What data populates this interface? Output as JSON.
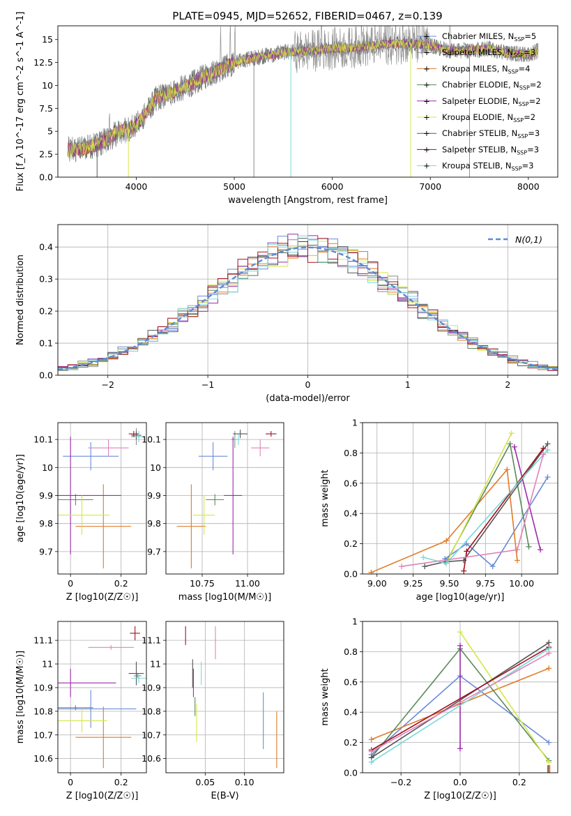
{
  "title": "PLATE=0945, MJD=52652, FIBERID=0467, z=0.139",
  "models": [
    {
      "name": "Chabrier MILES",
      "n": "5",
      "color": "#6a8ad8"
    },
    {
      "name": "Salpeter MILES",
      "n": "3",
      "color": "#8a8a8a"
    },
    {
      "name": "Kroupa MILES",
      "n": "4",
      "color": "#e07b27"
    },
    {
      "name": "Chabrier ELODIE",
      "n": "2",
      "color": "#5a8a5a"
    },
    {
      "name": "Salpeter ELODIE",
      "n": "2",
      "color": "#9a2aa8"
    },
    {
      "name": "Kroupa ELODIE",
      "n": "2",
      "color": "#d6e64a"
    },
    {
      "name": "Chabrier STELIB",
      "n": "3",
      "color": "#555555"
    },
    {
      "name": "Salpeter STELIB",
      "n": "3",
      "color": "#a01020"
    },
    {
      "name": "Kroupa STELIB",
      "n": "3",
      "color": "#78d8d8"
    }
  ],
  "extra_colors": {
    "pink": "#e082b8",
    "gauss": "#5b8ad6"
  },
  "chart_data": [
    {
      "id": "spectrum",
      "type": "line",
      "xlabel": "wavelength [Angstrom, rest frame]",
      "ylabel": "Flux [f_λ 10^-17 erg cm^-2 s^-1 A^-1]",
      "xlim": [
        3200,
        8300
      ],
      "ylim": [
        0,
        16.5
      ],
      "xticks": [
        4000,
        5000,
        6000,
        7000,
        8000
      ],
      "yticks": [
        0.0,
        2.5,
        5.0,
        7.5,
        10.0,
        12.5,
        15.0
      ],
      "grid": false,
      "legend": "top-right",
      "continuum": [
        [
          3300,
          3.0
        ],
        [
          3450,
          3.1
        ],
        [
          3600,
          3.6
        ],
        [
          3700,
          4.0
        ],
        [
          3800,
          4.8
        ],
        [
          3900,
          5.2
        ],
        [
          4000,
          5.6
        ],
        [
          4100,
          7.0
        ],
        [
          4200,
          8.5
        ],
        [
          4300,
          9.0
        ],
        [
          4500,
          9.8
        ],
        [
          4700,
          11.0
        ],
        [
          4900,
          12.0
        ],
        [
          5100,
          12.8
        ],
        [
          5300,
          13.2
        ],
        [
          5500,
          13.6
        ],
        [
          5800,
          13.8
        ],
        [
          6000,
          14.0
        ],
        [
          6300,
          14.2
        ],
        [
          6500,
          14.5
        ],
        [
          6800,
          14.6
        ],
        [
          7000,
          14.3
        ],
        [
          7200,
          13.8
        ],
        [
          7400,
          13.8
        ],
        [
          7600,
          14.0
        ],
        [
          7800,
          13.5
        ],
        [
          8000,
          13.4
        ],
        [
          8100,
          13.8
        ]
      ],
      "emission_lines": [
        3727,
        4861,
        4959,
        5007,
        5890,
        6300,
        6563,
        6583,
        6717,
        7200
      ],
      "deep_drops": [
        3600,
        3920,
        5200,
        5577,
        6800,
        7400
      ]
    },
    {
      "id": "residuals",
      "type": "histogram",
      "xlabel": "(data-model)/error",
      "ylabel": "Normed distribution",
      "xlim": [
        -2.5,
        2.5
      ],
      "ylim": [
        0,
        0.47
      ],
      "xticks": [
        -2,
        -1,
        0,
        1,
        2
      ],
      "yticks": [
        0.0,
        0.1,
        0.2,
        0.3,
        0.4
      ],
      "bin_width": 0.1,
      "grid": true,
      "gauss_label": "N(0,1)",
      "legend": "top-right"
    },
    {
      "id": "age_vs_Z",
      "type": "scatter",
      "xlabel": "Z [log10(Z/Z☉)]",
      "ylabel": "age  [log10(age/yr)]",
      "xlim": [
        -0.05,
        0.3
      ],
      "ylim": [
        9.62,
        10.16
      ],
      "xticks": [
        0.0,
        0.2
      ],
      "yticks": [
        9.7,
        9.8,
        9.9,
        10.0,
        10.1
      ],
      "points": [
        {
          "model": 0,
          "x": 0.08,
          "y": 10.04,
          "ex": 0.11,
          "ey": 0.05
        },
        {
          "model": 1,
          "x": 0.26,
          "y": 10.11,
          "ex": 0.02,
          "ey": 0.03
        },
        {
          "model": 2,
          "x": 0.13,
          "y": 9.79,
          "ex": 0.11,
          "ey": 0.15
        },
        {
          "model": 3,
          "x": 0.02,
          "y": 9.885,
          "ex": 0.07,
          "ey": 0.02
        },
        {
          "model": 4,
          "x": 0.0,
          "y": 9.9,
          "ex": 0.2,
          "ey": 0.21
        },
        {
          "model": 5,
          "x": 0.045,
          "y": 9.83,
          "ex": 0.11,
          "ey": 0.07
        },
        {
          "model": 6,
          "x": 0.26,
          "y": 10.115,
          "ex": 0.02,
          "ey": 0.015
        },
        {
          "model": 7,
          "x": 0.25,
          "y": 10.12,
          "ex": 0.02,
          "ey": 0.01
        },
        {
          "model": 8,
          "x": 0.27,
          "y": 10.11,
          "ex": 0.015,
          "ey": 0.02
        },
        {
          "color": "pink",
          "x": 0.15,
          "y": 10.07,
          "ex": 0.08,
          "ey": 0.03
        }
      ]
    },
    {
      "id": "age_vs_mass",
      "type": "scatter",
      "xlabel": "mass [log10(M/M☉)]",
      "ylabel": "",
      "xlim": [
        10.55,
        11.2
      ],
      "ylim": [
        9.62,
        10.16
      ],
      "xticks": [
        10.75,
        11.0
      ],
      "xticklabels": [
        "10.75",
        "11.00"
      ],
      "yticks": [
        9.7,
        9.8,
        9.9,
        10.0,
        10.1
      ],
      "points": [
        {
          "model": 0,
          "x": 10.81,
          "y": 10.04,
          "ex": 0.08,
          "ey": 0.05
        },
        {
          "model": 1,
          "x": 10.93,
          "y": 10.1,
          "ex": 0.02,
          "ey": 0.03
        },
        {
          "model": 2,
          "x": 10.69,
          "y": 9.79,
          "ex": 0.08,
          "ey": 0.15
        },
        {
          "model": 3,
          "x": 10.82,
          "y": 9.885,
          "ex": 0.05,
          "ey": 0.02
        },
        {
          "model": 4,
          "x": 10.92,
          "y": 9.9,
          "ex": 0.05,
          "ey": 0.21
        },
        {
          "model": 5,
          "x": 10.76,
          "y": 9.83,
          "ex": 0.06,
          "ey": 0.07
        },
        {
          "model": 6,
          "x": 10.96,
          "y": 10.12,
          "ex": 0.04,
          "ey": 0.015
        },
        {
          "model": 7,
          "x": 11.13,
          "y": 10.12,
          "ex": 0.03,
          "ey": 0.01
        },
        {
          "model": 8,
          "x": 10.95,
          "y": 10.1,
          "ex": 0.02,
          "ey": 0.02
        },
        {
          "color": "pink",
          "x": 11.07,
          "y": 10.07,
          "ex": 0.05,
          "ey": 0.03
        }
      ]
    },
    {
      "id": "weight_vs_age",
      "type": "line",
      "xlabel": "age  [log10(age/yr)]",
      "ylabel": "mass weight",
      "xlim": [
        8.9,
        10.25
      ],
      "ylim": [
        0,
        1.0
      ],
      "xticks": [
        9.0,
        9.25,
        9.5,
        9.75,
        10.0
      ],
      "xticklabels": [
        "9.00",
        "9.25",
        "9.50",
        "9.75",
        "10.00"
      ],
      "yticks": [
        0.0,
        0.2,
        0.4,
        0.6,
        0.8,
        1.0
      ],
      "grid": true,
      "series": [
        {
          "model": 0,
          "x": [
            9.47,
            9.62,
            9.8,
            10.18
          ],
          "y": [
            0.1,
            0.2,
            0.05,
            0.64
          ]
        },
        {
          "model": 2,
          "x": [
            8.96,
            9.48,
            9.9,
            9.97
          ],
          "y": [
            0.01,
            0.22,
            0.69,
            0.09
          ]
        },
        {
          "model": 3,
          "x": [
            9.48,
            9.92,
            10.05
          ],
          "y": [
            0.08,
            0.86,
            0.18
          ]
        },
        {
          "model": 4,
          "x": [
            9.95,
            10.13
          ],
          "y": [
            0.84,
            0.16
          ]
        },
        {
          "model": 5,
          "x": [
            9.48,
            9.93
          ],
          "y": [
            0.07,
            0.93
          ]
        },
        {
          "model": 6,
          "x": [
            9.33,
            9.47,
            9.6,
            10.18
          ],
          "y": [
            0.05,
            0.08,
            0.09,
            0.86
          ]
        },
        {
          "model": 7,
          "x": [
            9.6,
            9.62,
            10.15
          ],
          "y": [
            0.02,
            0.15,
            0.83
          ]
        },
        {
          "model": 8,
          "x": [
            9.32,
            9.48,
            10.18
          ],
          "y": [
            0.11,
            0.07,
            0.82
          ]
        },
        {
          "color": "pink",
          "x": [
            9.17,
            9.97,
            10.15
          ],
          "y": [
            0.05,
            0.16,
            0.79
          ]
        }
      ]
    },
    {
      "id": "mass_vs_Z",
      "type": "scatter",
      "xlabel": "Z [log10(Z/Z☉)]",
      "ylabel": "mass [log10(M/M☉)]",
      "xlim": [
        -0.05,
        0.3
      ],
      "ylim": [
        10.54,
        11.18
      ],
      "xticks": [
        0.0,
        0.2
      ],
      "yticks": [
        10.6,
        10.7,
        10.8,
        10.9,
        11.0,
        11.1
      ],
      "points": [
        {
          "model": 0,
          "x": 0.08,
          "y": 10.81,
          "ex": 0.18,
          "ey": 0.08
        },
        {
          "model": 1,
          "x": 0.265,
          "y": 10.95,
          "ex": 0.015,
          "ey": 0.01
        },
        {
          "model": 2,
          "x": 0.13,
          "y": 10.69,
          "ex": 0.11,
          "ey": 0.13
        },
        {
          "model": 3,
          "x": 0.02,
          "y": 10.815,
          "ex": 0.07,
          "ey": 0.01
        },
        {
          "model": 4,
          "x": 0.0,
          "y": 10.92,
          "ex": 0.18,
          "ey": 0.06
        },
        {
          "model": 5,
          "x": 0.045,
          "y": 10.76,
          "ex": 0.1,
          "ey": 0.05
        },
        {
          "model": 6,
          "x": 0.26,
          "y": 10.96,
          "ex": 0.03,
          "ey": 0.05
        },
        {
          "model": 7,
          "x": 0.255,
          "y": 11.13,
          "ex": 0.02,
          "ey": 0.03
        },
        {
          "model": 8,
          "x": 0.27,
          "y": 10.94,
          "ex": 0.03,
          "ey": 0.02
        },
        {
          "color": "pink",
          "x": 0.16,
          "y": 11.07,
          "ex": 0.09,
          "ey": 0.01
        }
      ]
    },
    {
      "id": "mass_vs_ebv",
      "type": "scatter",
      "xlabel": "E(B-V)",
      "ylabel": "",
      "xlim": [
        0.0,
        0.15
      ],
      "ylim": [
        10.54,
        11.18
      ],
      "xticks": [
        0.05,
        0.1
      ],
      "xticklabels": [
        "0.05",
        "0.10"
      ],
      "yticks": [
        10.6,
        10.7,
        10.8,
        10.9,
        11.0,
        11.1
      ],
      "points": [
        {
          "model": 0,
          "x": 0.124,
          "y": 10.76,
          "ex": 0,
          "ey": 0.12
        },
        {
          "model": 2,
          "x": 0.141,
          "y": 10.68,
          "ex": 0,
          "ey": 0.12
        },
        {
          "model": 3,
          "x": 0.037,
          "y": 10.82,
          "ex": 0,
          "ey": 0.04
        },
        {
          "model": 4,
          "x": 0.035,
          "y": 10.92,
          "ex": 0,
          "ey": 0.06
        },
        {
          "model": 5,
          "x": 0.039,
          "y": 10.75,
          "ex": 0,
          "ey": 0.08
        },
        {
          "model": 6,
          "x": 0.034,
          "y": 10.96,
          "ex": 0,
          "ey": 0.06
        },
        {
          "model": 7,
          "x": 0.025,
          "y": 11.12,
          "ex": 0,
          "ey": 0.04
        },
        {
          "model": 8,
          "x": 0.045,
          "y": 10.96,
          "ex": 0,
          "ey": 0.05
        },
        {
          "color": "pink",
          "x": 0.063,
          "y": 11.09,
          "ex": 0,
          "ey": 0.07
        }
      ]
    },
    {
      "id": "weight_vs_Z",
      "type": "line",
      "xlabel": "Z [log10(Z/Z☉)]",
      "ylabel": "mass weight",
      "xlim": [
        -0.33,
        0.33
      ],
      "ylim": [
        0,
        1.0
      ],
      "xticks": [
        -0.2,
        0.0,
        0.2
      ],
      "xticklabels": [
        "−0.2",
        "0.0",
        "0.2"
      ],
      "yticks": [
        0.0,
        0.2,
        0.4,
        0.6,
        0.8,
        1.0
      ],
      "grid": true,
      "series": [
        {
          "model": 0,
          "x": [
            -0.3,
            0.0,
            0.3
          ],
          "y": [
            0.12,
            0.64,
            0.2
          ]
        },
        {
          "model": 2,
          "x": [
            -0.3,
            0.3
          ],
          "y": [
            0.22,
            0.69
          ]
        },
        {
          "model": 3,
          "x": [
            -0.3,
            0.0,
            0.3
          ],
          "y": [
            0.1,
            0.82,
            0.08
          ]
        },
        {
          "model": 4,
          "x": [
            0.0,
            0.0
          ],
          "y": [
            0.16,
            0.84
          ]
        },
        {
          "model": 5,
          "x": [
            0.0,
            0.3
          ],
          "y": [
            0.93,
            0.07
          ]
        },
        {
          "model": 6,
          "x": [
            -0.3,
            0.3
          ],
          "y": [
            0.1,
            0.86
          ]
        },
        {
          "model": 7,
          "x": [
            -0.3,
            0.3
          ],
          "y": [
            0.15,
            0.83
          ]
        },
        {
          "model": 8,
          "x": [
            -0.3,
            0.3
          ],
          "y": [
            0.07,
            0.82
          ]
        },
        {
          "color": "pink",
          "x": [
            -0.3,
            0.3
          ],
          "y": [
            0.14,
            0.79
          ]
        }
      ],
      "column_at_solar_plus": {
        "x": 0.3,
        "y": [
          0.0,
          0.2
        ]
      }
    }
  ]
}
